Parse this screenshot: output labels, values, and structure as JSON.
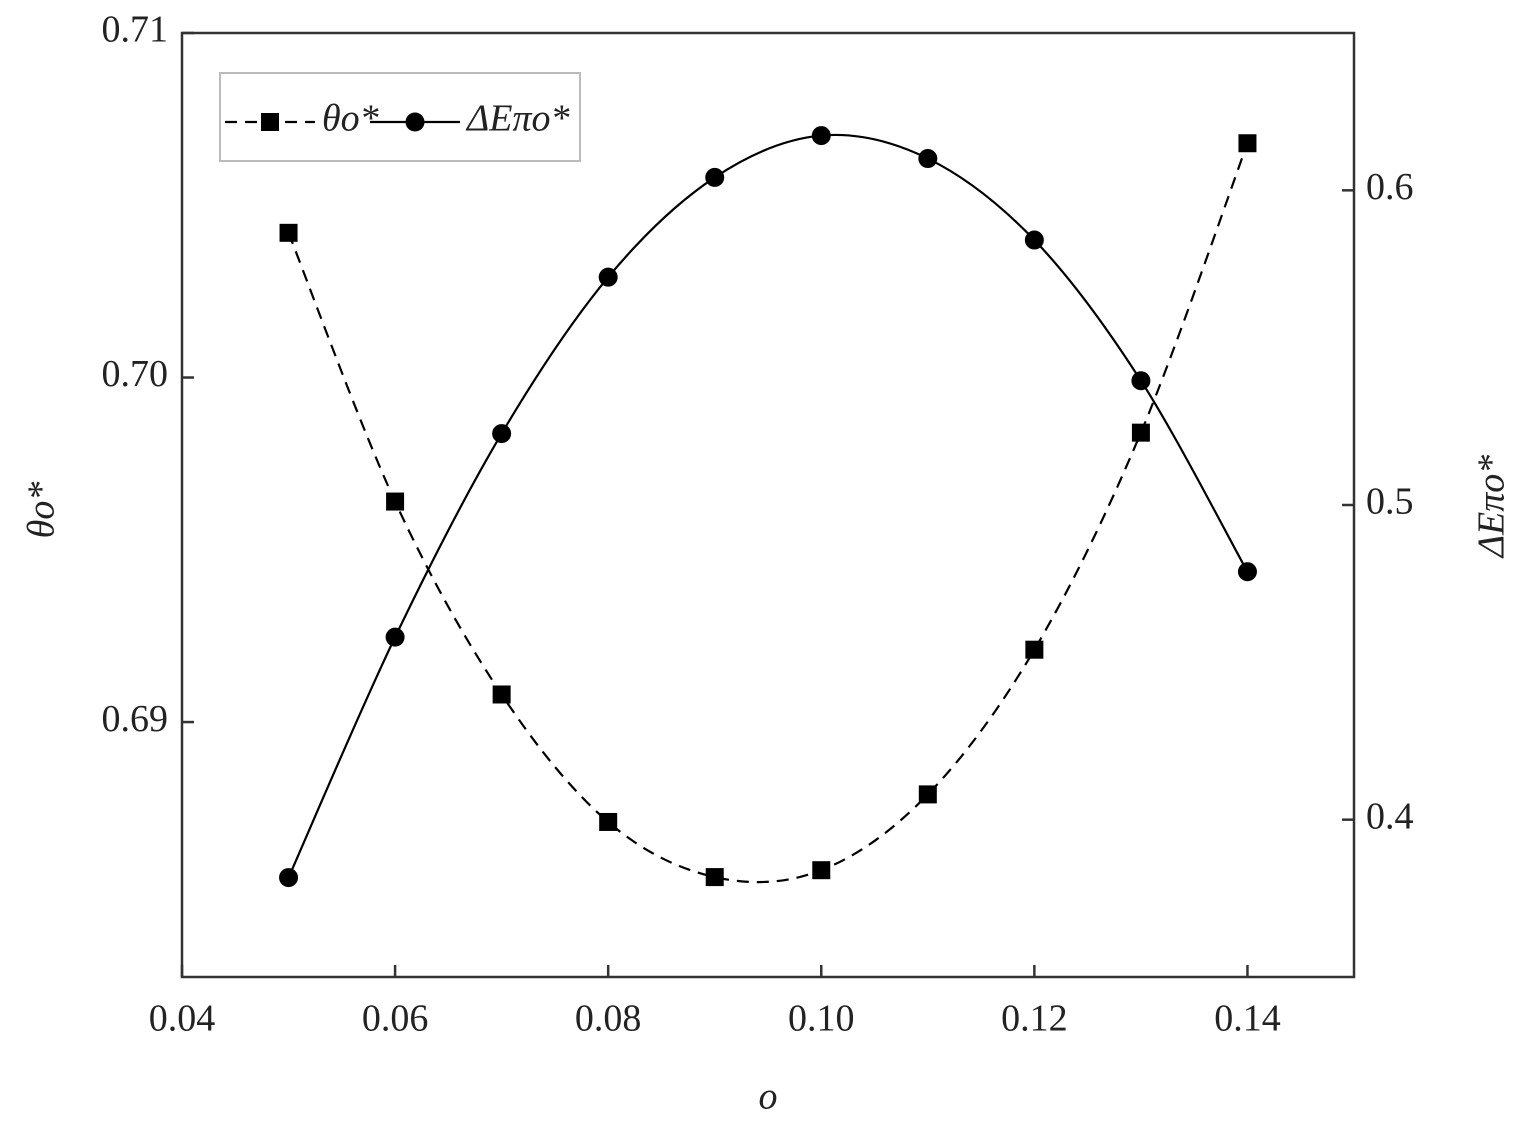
{
  "chart_data": {
    "type": "line",
    "x_label": "o",
    "y_label": "θo*",
    "y2_label": "ΔEπo*",
    "x": [
      0.05,
      0.06,
      0.07,
      0.08,
      0.09,
      0.1,
      0.11,
      0.12,
      0.13,
      0.14
    ],
    "series": [
      {
        "name": "θo*",
        "color": "#000000",
        "dash": true,
        "marker": "square",
        "values": [
          0.7042,
          0.6964,
          0.6908,
          0.6871,
          0.6855,
          0.6857,
          0.6879,
          0.6921,
          0.6984,
          0.7068
        ]
      },
      {
        "name": "ΔEπo*",
        "color": "#000000",
        "dash": false,
        "marker": "circle",
        "axis": "y2",
        "values": [
          0.3816,
          0.458,
          0.5227,
          0.5724,
          0.6041,
          0.6174,
          0.6101,
          0.5842,
          0.5395,
          0.4788
        ]
      }
    ],
    "xlim": [
      0.04,
      0.15
    ],
    "xticks": [
      0.04,
      0.06,
      0.08,
      {
        "value": 0.1,
        "label": "0.10"
      },
      0.12,
      0.14
    ],
    "ylim": [
      0.6826,
      0.71
    ],
    "yticks": [
      {
        "value": 0.69,
        "label": "0.69"
      },
      {
        "value": 0.7,
        "label": "0.70"
      },
      0.71
    ],
    "y2lim": [
      0.35,
      0.65
    ],
    "y2ticks": [
      0.4,
      0.5,
      0.6
    ],
    "legend": "upper left",
    "grid": false
  }
}
